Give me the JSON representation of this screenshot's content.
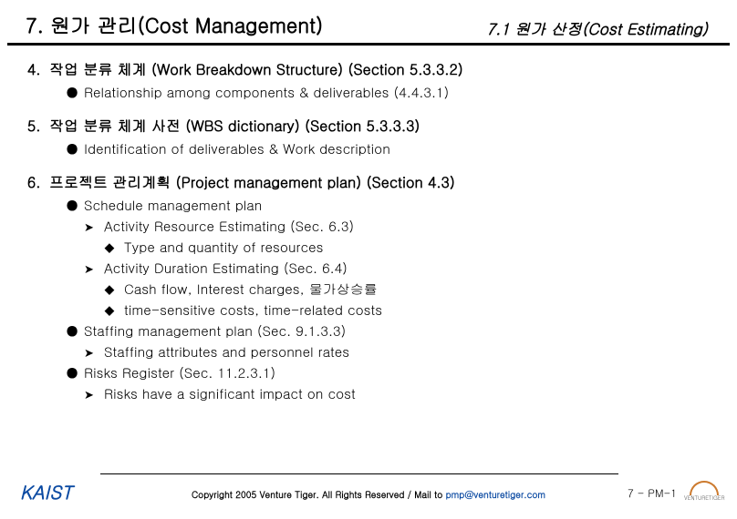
{
  "header": {
    "title": "7. 원가 관리(Cost Management)",
    "subtitle": "7.1 원가 산정(Cost Estimating)"
  },
  "items": [
    {
      "num": "4.",
      "title": "작업 분류 체계 (Work Breakdown Structure) (Section 5.3.3.2)",
      "bullets": [
        {
          "lvl": 1,
          "text": "Relationship among components & deliverables (4.4.3.1)"
        }
      ]
    },
    {
      "num": "5.",
      "title": "작업 분류 체계 사전 (WBS dictionary) (Section 5.3.3.3)",
      "bullets": [
        {
          "lvl": 1,
          "text": "Identification of deliverables & Work description"
        }
      ]
    },
    {
      "num": "6.",
      "title": "프로젝트 관리계획 (Project management plan) (Section 4.3)",
      "bullets": [
        {
          "lvl": 1,
          "text": "Schedule management plan"
        },
        {
          "lvl": 2,
          "text": "Activity Resource Estimating (Sec. 6.3)"
        },
        {
          "lvl": 3,
          "text": "Type and quantity of resources"
        },
        {
          "lvl": 2,
          "text": "Activity Duration Estimating (Sec. 6.4)"
        },
        {
          "lvl": 3,
          "text": "Cash flow, Interest charges, 물가상승률"
        },
        {
          "lvl": 3,
          "text": "time-sensitive costs, time-related costs"
        },
        {
          "lvl": 1,
          "text": "Staffing management plan (Sec. 9.1.3.3)"
        },
        {
          "lvl": 2,
          "text": "Staffing attributes and personnel rates"
        },
        {
          "lvl": 1,
          "text": "Risks Register (Sec. 11.2.3.1)"
        },
        {
          "lvl": 2,
          "text": "Risks have a significant impact on cost"
        }
      ]
    }
  ],
  "footer": {
    "kaist": "KAIST",
    "copyright_prefix": "Copyright 2005 ",
    "copyright_brand": "Venture Tiger",
    "copyright_mid": ". All Rights Reserved / Mail to ",
    "copyright_mail": "pmp@venturetiger.com",
    "pagenum": "7 - PM-1",
    "vt_text": "VENTURETIGER"
  },
  "glyphs": {
    "b1": "●",
    "b2": "➤",
    "b3": "◆"
  },
  "colors": {
    "kaist": "#0b4aa2",
    "mail": "#0b4aa2",
    "logo": "#cc7a2e"
  }
}
